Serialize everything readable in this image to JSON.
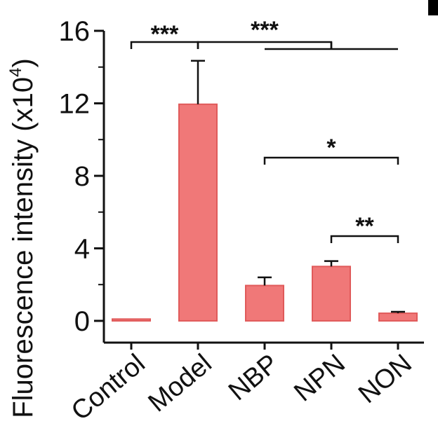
{
  "chart_data": {
    "type": "bar",
    "ylabel": "Fluorescence intensity (x10",
    "ylabel_exponent": "4",
    "ylabel_close": ")",
    "ylim": [
      -1.2,
      16
    ],
    "yticks": [
      0,
      4,
      8,
      12,
      16
    ],
    "categories": [
      "Control",
      "Model",
      "NBP",
      "NPN",
      "NON"
    ],
    "values": [
      0.1,
      11.95,
      1.95,
      3.0,
      0.42
    ],
    "errors": [
      0.0,
      2.4,
      0.45,
      0.3,
      0.08
    ],
    "bar_color": "#f07878",
    "bar_edge_color": "#e05a5a",
    "significance": [
      {
        "label": "***",
        "from": "Control",
        "to": "Model"
      },
      {
        "label": "***",
        "from": "Model",
        "to": "NBP–NON"
      },
      {
        "label": "*",
        "from": "NBP",
        "to": "NON"
      },
      {
        "label": "**",
        "from": "NPN",
        "to": "NON"
      }
    ]
  }
}
